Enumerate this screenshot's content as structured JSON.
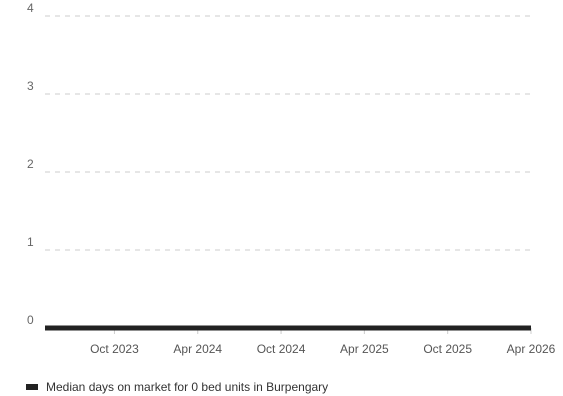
{
  "chart_data": {
    "type": "line",
    "x": [
      "2023-05",
      "2026-04"
    ],
    "x_tick_labels": [
      "Oct 2023",
      "Apr 2024",
      "Oct 2024",
      "Apr 2025",
      "Oct 2025",
      "Apr 2026"
    ],
    "y_ticks": [
      0,
      1,
      2,
      3,
      4
    ],
    "ylim": [
      0,
      4
    ],
    "grid": true,
    "legend_position": "bottom-left",
    "series": [
      {
        "name": "Median days on market for 0 bed units in Burpengary",
        "x": [
          "2023-05",
          "2026-04"
        ],
        "values": [
          0,
          0
        ],
        "color": "#222222"
      }
    ],
    "title": "",
    "xlabel": "",
    "ylabel": ""
  }
}
